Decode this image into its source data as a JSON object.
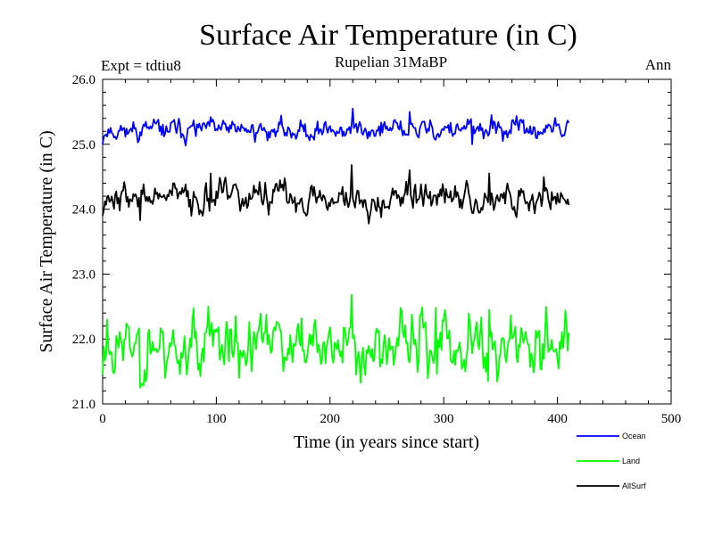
{
  "chart_data": {
    "type": "line",
    "title": "Surface Air Temperature (in C)",
    "subtitle": "Rupelian  31MaBP",
    "expt_label": "Expt = tdtiu8",
    "season_label": "Ann",
    "xlabel": "Time (in years since start)",
    "ylabel": "Surface Air Temperature (in C)",
    "xlim": [
      0,
      500
    ],
    "ylim": [
      21.0,
      26.0
    ],
    "x_ticks": [
      0,
      100,
      200,
      300,
      400,
      500
    ],
    "x_tick_labels": [
      "0",
      "100",
      "200",
      "300",
      "400",
      "500"
    ],
    "y_ticks": [
      21.0,
      22.0,
      23.0,
      24.0,
      25.0,
      26.0
    ],
    "y_tick_labels": [
      "21.0",
      "22.0",
      "23.0",
      "24.0",
      "25.0",
      "26.0"
    ],
    "x_start": 0,
    "x_end": 410,
    "legend_position": "bottom-right",
    "series": [
      {
        "name": "Ocean",
        "color": "#0000ff",
        "mean": 25.22,
        "variability": 0.08,
        "seed": 11,
        "start_value": 25.0,
        "features": [
          {
            "x": 95,
            "value": 25.42
          },
          {
            "x": 220,
            "value": 25.55
          },
          {
            "x": 270,
            "value": 25.5
          },
          {
            "x": 325,
            "value": 25.0
          },
          {
            "x": 342,
            "value": 25.45
          }
        ]
      },
      {
        "name": "Land",
        "color": "#00ff00",
        "mean": 21.9,
        "variability": 0.24,
        "seed": 23,
        "start_value": 21.45,
        "features": [
          {
            "x": 4,
            "value": 22.3
          },
          {
            "x": 33,
            "value": 21.25
          },
          {
            "x": 93,
            "value": 22.5
          },
          {
            "x": 120,
            "value": 21.4
          },
          {
            "x": 219,
            "value": 22.68
          },
          {
            "x": 293,
            "value": 22.48
          },
          {
            "x": 340,
            "value": 22.45
          }
        ]
      },
      {
        "name": "AllSurf",
        "color": "#000000",
        "mean": 24.18,
        "variability": 0.12,
        "seed": 37,
        "start_value": 23.9,
        "features": [
          {
            "x": 33,
            "value": 23.83
          },
          {
            "x": 95,
            "value": 24.55
          },
          {
            "x": 219,
            "value": 24.68
          },
          {
            "x": 270,
            "value": 24.6
          },
          {
            "x": 340,
            "value": 24.55
          }
        ]
      }
    ]
  }
}
